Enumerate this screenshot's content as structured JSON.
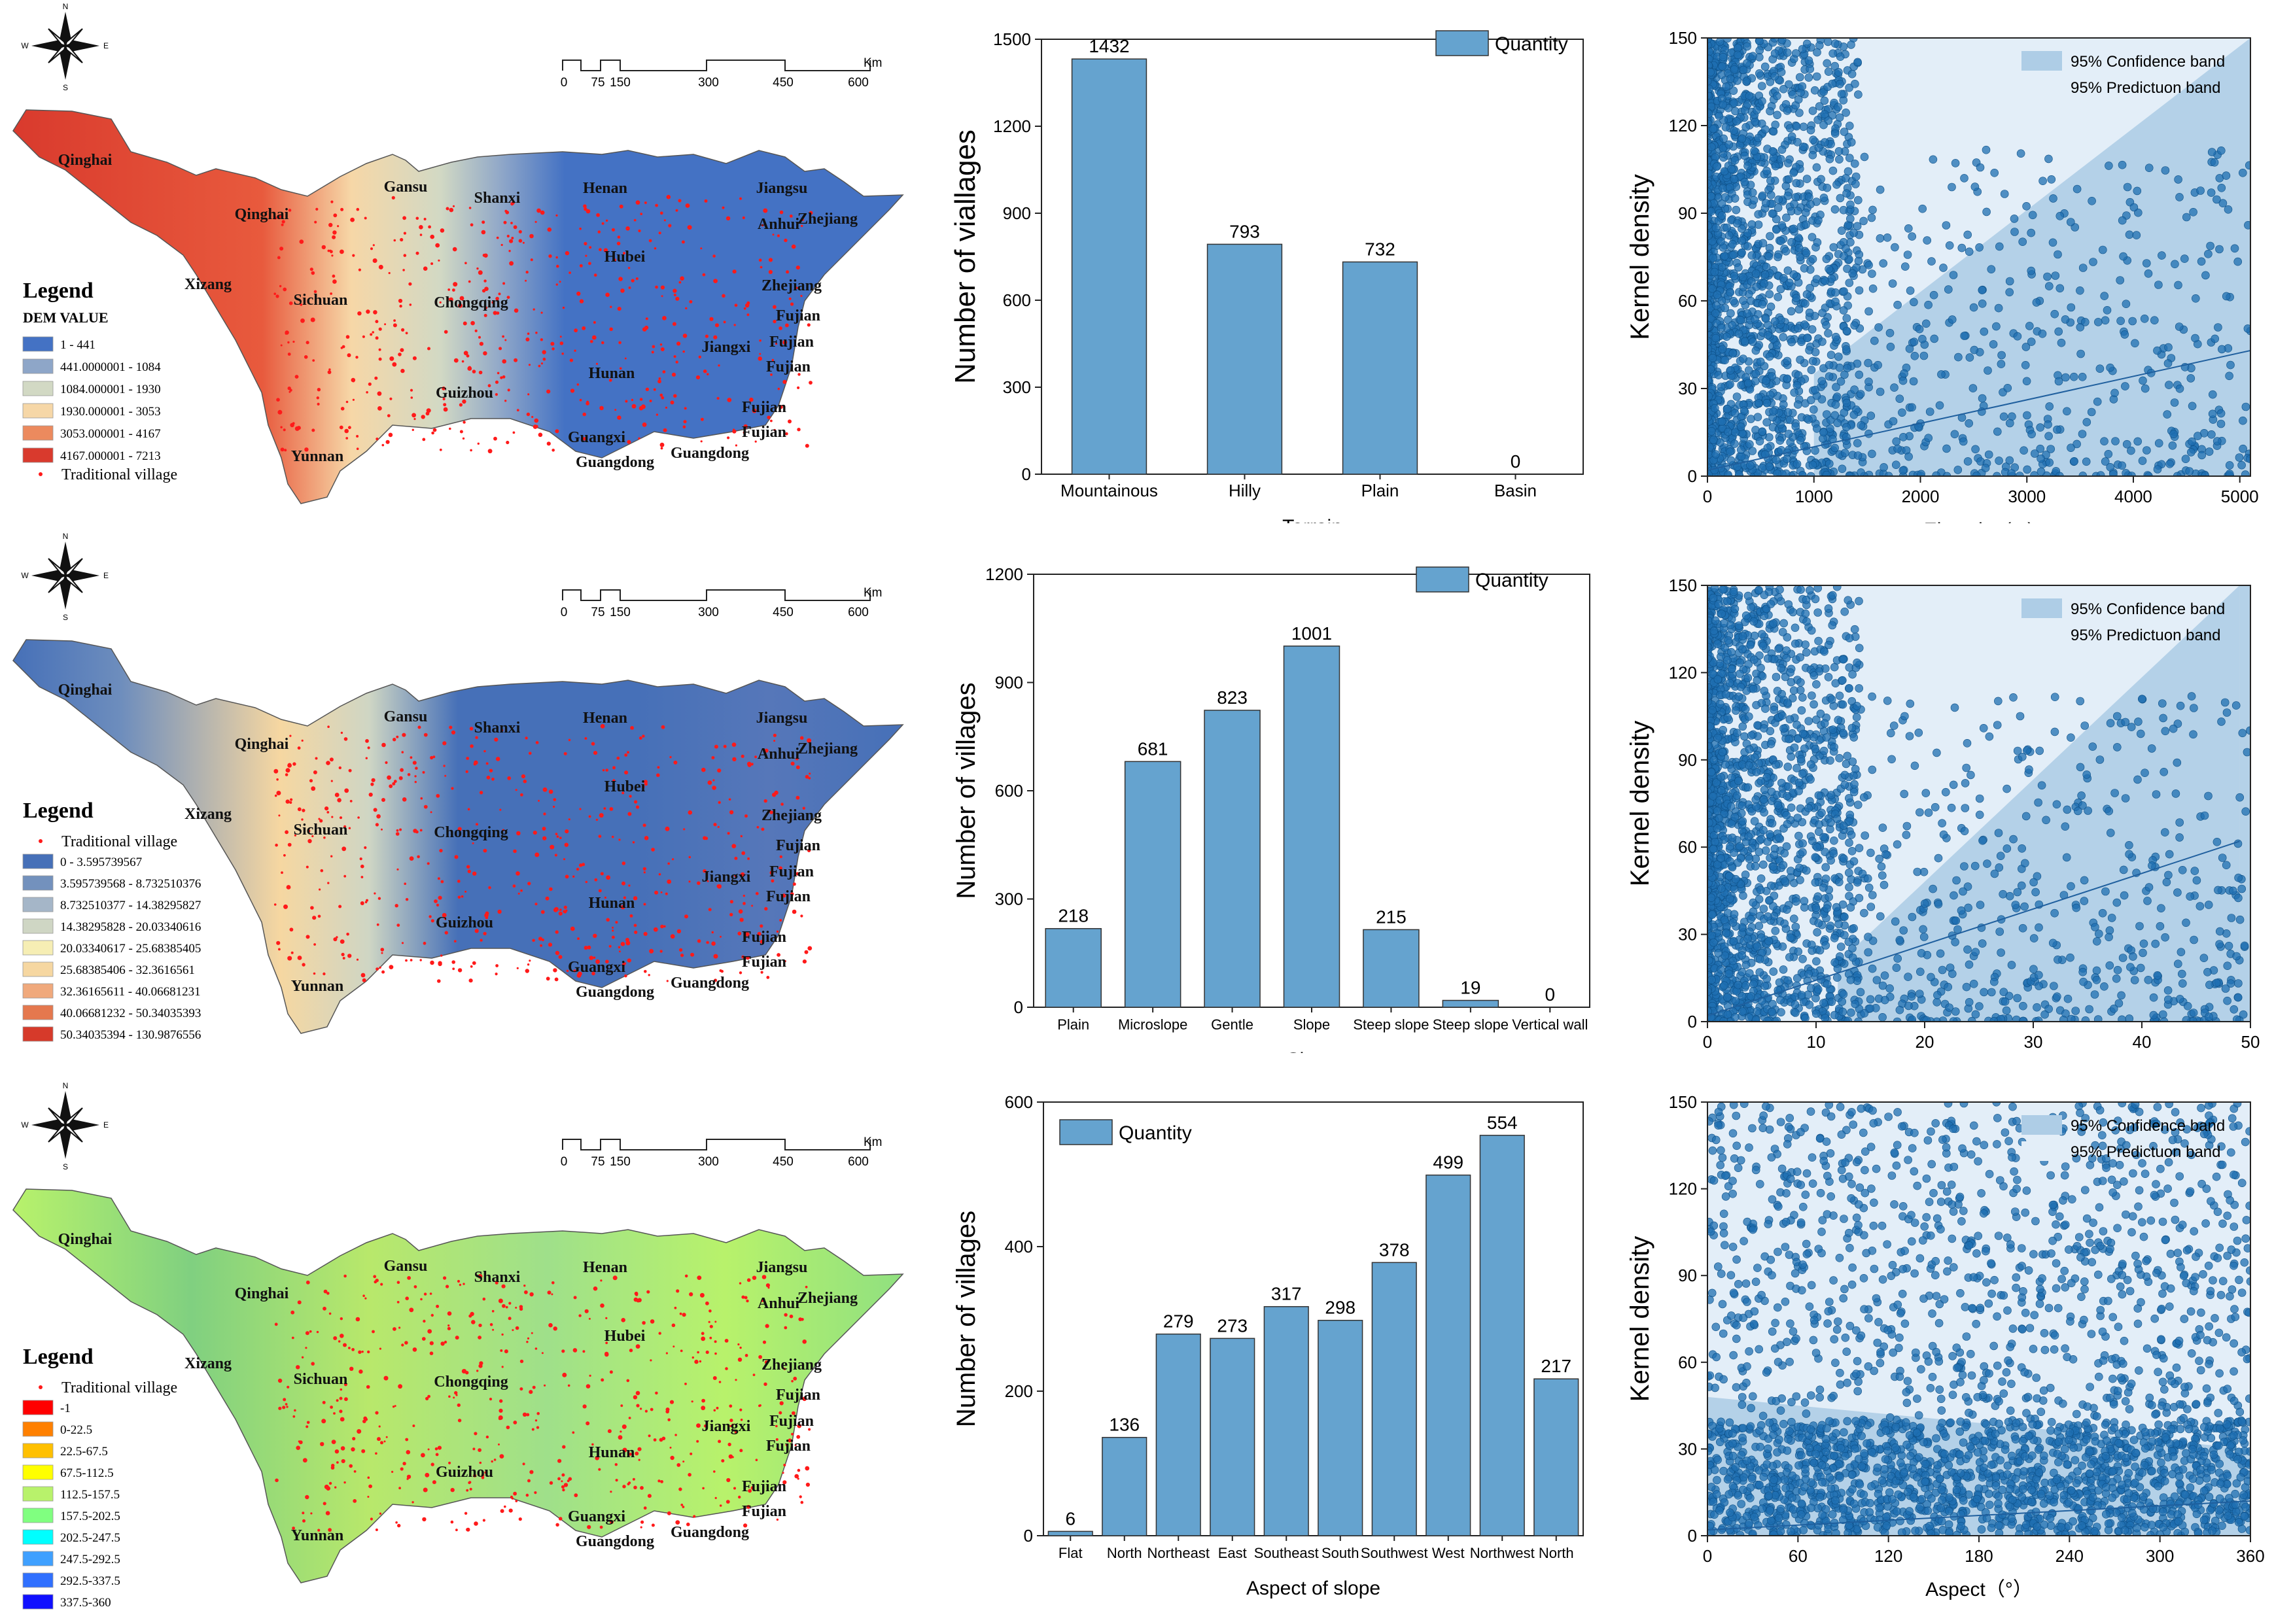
{
  "map_common": {
    "compass": {
      "n": "N",
      "s": "S",
      "e": "E",
      "w": "W"
    },
    "scale": {
      "ticks": [
        "0",
        "75",
        "150",
        "300",
        "450",
        "600"
      ],
      "unit": "Km"
    },
    "places": [
      "Qinghai",
      "Qinghai",
      "Xizang",
      "Sichuan",
      "Gansu",
      "Shanxi",
      "Henan",
      "Hubei",
      "Chongqing",
      "Guizhou",
      "Hunan",
      "Yunnan",
      "Guangxi",
      "Guangdong",
      "Guangdong",
      "Jiangsu",
      "Anhui",
      "Zhejiang",
      "Zhejiang",
      "Fujian",
      "Jiangxi",
      "Fujian",
      "Fujian",
      "Fujian",
      "Fujian"
    ]
  },
  "maps": [
    {
      "legend_title": "Legend",
      "legend_subtitle": "DEM VALUE",
      "items": [
        "1 - 441",
        "441.0000001 - 1084",
        "1084.000001 - 1930",
        "1930.000001 - 3053",
        "3053.000001 - 4167",
        "4167.000001 - 7213"
      ],
      "colors": [
        "#4472c4",
        "#8ea6c8",
        "#d2d9c4",
        "#f6d7a7",
        "#ec8a5e",
        "#d93a2d"
      ],
      "tv_label": "Traditional village",
      "tv_first": false
    },
    {
      "legend_title": "Legend",
      "items": [
        "0 - 3.595739567",
        "3.595739568 - 8.732510376",
        "8.732510377 - 14.38295827",
        "14.38295828 - 20.03340616",
        "20.03340617 - 25.68385405",
        "25.68385406 - 32.3616561",
        "32.36165611 - 40.06681231",
        "40.06681232 - 50.34035393",
        "50.34035394 - 130.9876556"
      ],
      "colors": [
        "#4670b8",
        "#7391bd",
        "#a5b6c8",
        "#cfd6c4",
        "#f6eeb4",
        "#f6d7a1",
        "#f0a97c",
        "#e5784e",
        "#d63a2a"
      ],
      "tv_label": "Traditional village",
      "tv_first": true
    },
    {
      "legend_title": "Legend",
      "items": [
        "-1",
        "0-22.5",
        "22.5-67.5",
        "67.5-112.5",
        "112.5-157.5",
        "157.5-202.5",
        "202.5-247.5",
        "247.5-292.5",
        "292.5-337.5",
        "337.5-360"
      ],
      "colors": [
        "#ff0000",
        "#ff8000",
        "#ffc000",
        "#ffff00",
        "#b8f26b",
        "#80ff80",
        "#00ffff",
        "#3fa0ff",
        "#3070ff",
        "#1010ff"
      ],
      "tv_label": "Traditional village",
      "tv_first": true
    }
  ],
  "chart_data": [
    {
      "type": "bar",
      "categories": [
        "Mountainous",
        "Hilly",
        "Plain",
        "Basin"
      ],
      "values": [
        1432,
        793,
        732,
        0
      ],
      "value_labels": [
        "1432",
        "793",
        "732",
        "0"
      ],
      "xlabel": "Terrain",
      "ylabel": "Number of viallages",
      "ylim": [
        0,
        1500
      ],
      "yticks": [
        "0",
        "300",
        "600",
        "900",
        "1200",
        "1500"
      ],
      "legend": "Quantity",
      "legend_position": "top-right",
      "color": "#65a3cf"
    },
    {
      "type": "bar",
      "categories": [
        "Plain",
        "Microslope",
        "Gentle",
        "Slope",
        "Steep slope",
        "Steep slope",
        "Vertical wall"
      ],
      "values": [
        218,
        681,
        823,
        1001,
        215,
        19,
        0
      ],
      "value_labels": [
        "218",
        "681",
        "823",
        "1001",
        "215",
        "19",
        "0"
      ],
      "xlabel": "Slope",
      "ylabel": "Number of villages",
      "ylim": [
        0,
        1200
      ],
      "yticks": [
        "0",
        "300",
        "600",
        "900",
        "1200"
      ],
      "legend": "Quantity",
      "legend_position": "top-right",
      "color": "#65a3cf"
    },
    {
      "type": "bar",
      "categories": [
        "Flat",
        "North",
        "Northeast",
        "East",
        "Southeast",
        "South",
        "Southwest",
        "West",
        "Northwest",
        "North"
      ],
      "values": [
        6,
        136,
        279,
        273,
        317,
        298,
        378,
        499,
        554,
        217
      ],
      "value_labels": [
        "6",
        "136",
        "279",
        "273",
        "317",
        "298",
        "378",
        "499",
        "554",
        "217"
      ],
      "xlabel": "Aspect of slope",
      "ylabel": "Number of villages",
      "ylim": [
        0,
        600
      ],
      "yticks": [
        "0",
        "200",
        "400",
        "600"
      ],
      "legend": "Quantity",
      "legend_position": "top-left",
      "color": "#65a3cf"
    },
    {
      "type": "scatter",
      "xlabel": "Elevation(m)",
      "ylabel": "Kernel density",
      "xlim": [
        0,
        5100
      ],
      "ylim": [
        0,
        150
      ],
      "xticks": [
        "0",
        "1000",
        "2000",
        "3000",
        "4000",
        "5000"
      ],
      "yticks": [
        "0",
        "30",
        "60",
        "90",
        "120",
        "150"
      ],
      "fit_line": {
        "x": [
          0,
          5100
        ],
        "y": [
          2,
          43
        ]
      },
      "prediction_band_lower": {
        "x": [
          0,
          1000,
          5100
        ],
        "y": [
          150,
          150,
          150
        ]
      },
      "confidence_band": {
        "x": [
          1000,
          5100
        ],
        "lower": [
          0,
          0
        ],
        "upper": [
          35,
          150
        ]
      },
      "legend": [
        "95% Confidence band",
        "95% Predictuon band"
      ],
      "legend_position": "top-right",
      "point_color": "#1f6fb2"
    },
    {
      "type": "scatter",
      "xlabel": "Slope(°)",
      "ylabel": "Kernel density",
      "xlim": [
        0,
        50
      ],
      "ylim": [
        0,
        150
      ],
      "xticks": [
        "0",
        "10",
        "20",
        "30",
        "40",
        "50"
      ],
      "yticks": [
        "0",
        "30",
        "60",
        "90",
        "120",
        "150"
      ],
      "fit_line": {
        "x": [
          0,
          49
        ],
        "y": [
          2,
          62
        ]
      },
      "confidence_band": {
        "x": [
          12,
          49
        ],
        "lower": [
          0,
          0
        ],
        "upper": [
          20,
          150
        ]
      },
      "legend": [
        "95% Confidence band",
        "95% Predictuon band"
      ],
      "legend_position": "top-right",
      "point_color": "#1f6fb2"
    },
    {
      "type": "scatter",
      "xlabel": "Aspect（°）",
      "ylabel": "Kernel density",
      "xlim": [
        0,
        360
      ],
      "ylim": [
        0,
        150
      ],
      "xticks": [
        "0",
        "60",
        "120",
        "180",
        "240",
        "300",
        "360"
      ],
      "yticks": [
        "0",
        "30",
        "60",
        "90",
        "120",
        "150"
      ],
      "fit_line": {
        "x": [
          0,
          360
        ],
        "y": [
          2,
          12
        ]
      },
      "confidence_band": {
        "x": [
          0,
          360
        ],
        "lower": [
          0,
          0
        ],
        "upper": [
          48,
          30
        ]
      },
      "legend": [
        "95% Confidence band",
        "95% Predictuon band"
      ],
      "legend_position": "top-right",
      "point_color": "#1f6fb2"
    }
  ]
}
